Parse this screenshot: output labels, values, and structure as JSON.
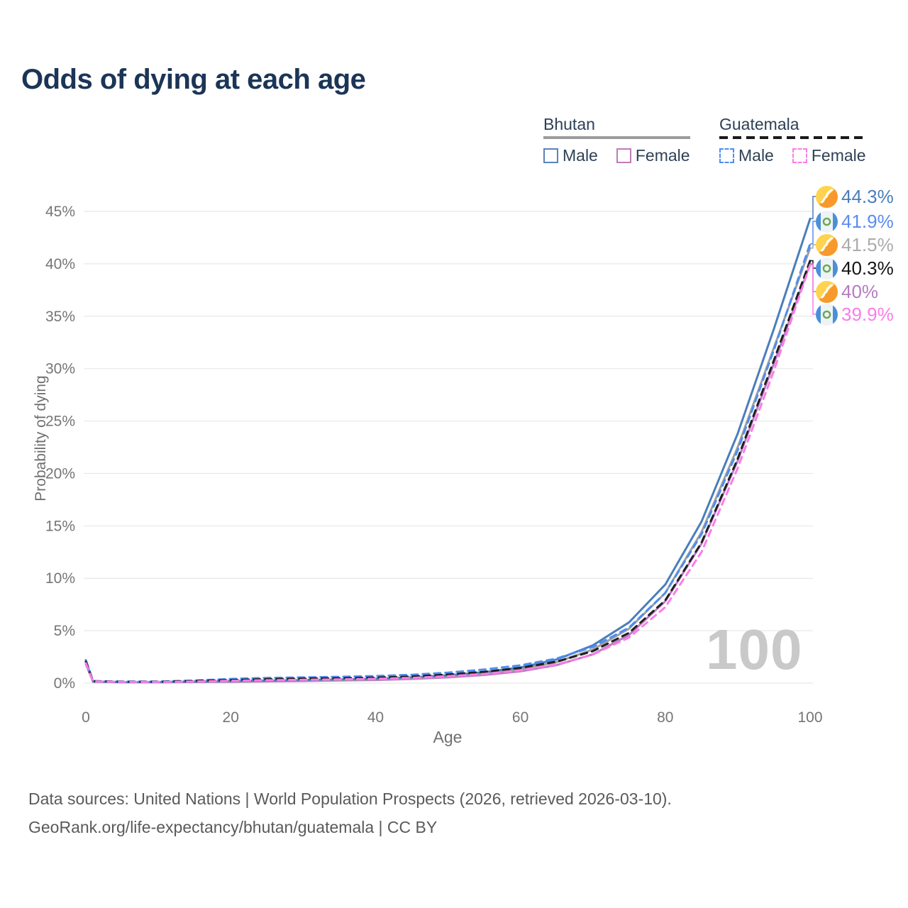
{
  "title": "Odds of dying at each age",
  "legend": {
    "groups": [
      {
        "country": "Bhutan",
        "line_style": "solid",
        "underline_color": "#9c9c9c",
        "items": [
          {
            "label": "Male",
            "color": "#5b82bb"
          },
          {
            "label": "Female",
            "color": "#bf7cba"
          }
        ]
      },
      {
        "country": "Guatemala",
        "line_style": "dashed",
        "underline_color": "#1a1a1a",
        "items": [
          {
            "label": "Male",
            "color": "#4f8df2"
          },
          {
            "label": "Female",
            "color": "#fb7ce8"
          }
        ]
      }
    ]
  },
  "watermark_age": "100",
  "end_labels": [
    {
      "flag": "bhutan",
      "value": "44.3%",
      "color": "#4a7ebb"
    },
    {
      "flag": "guatemala",
      "value": "41.9%",
      "color": "#5b8cf0"
    },
    {
      "flag": "bhutan",
      "value": "41.5%",
      "color": "#ababab"
    },
    {
      "flag": "guatemala",
      "value": "40.3%",
      "color": "#141414"
    },
    {
      "flag": "bhutan",
      "value": "40%",
      "color": "#b57cc0"
    },
    {
      "flag": "guatemala",
      "value": "39.9%",
      "color": "#fb7ce8"
    }
  ],
  "footer": {
    "line1": "Data sources: United Nations | World Population Prospects (2026, retrieved 2026-03-10).",
    "line2": "GeoRank.org/life-expectancy/bhutan/guatemala | CC BY"
  },
  "chart_data": {
    "type": "line",
    "title": "Odds of dying at each age",
    "xlabel": "Age",
    "ylabel": "Probability of dying",
    "xlim": [
      0,
      100
    ],
    "ylim": [
      0,
      45
    ],
    "grid": "horizontal",
    "legend_position": "top-right",
    "xticks": [
      0,
      20,
      40,
      60,
      80,
      100
    ],
    "yticks": [
      "0%",
      "5%",
      "10%",
      "15%",
      "20%",
      "25%",
      "30%",
      "35%",
      "40%",
      "45%"
    ],
    "x": [
      0,
      1,
      5,
      10,
      15,
      20,
      25,
      30,
      35,
      40,
      45,
      50,
      55,
      60,
      65,
      70,
      75,
      80,
      85,
      90,
      95,
      100
    ],
    "series": [
      {
        "id": "bhutan-female",
        "name": "Bhutan Female",
        "color": "#bc7ac4",
        "dash": "solid",
        "end_label": "40%",
        "values": [
          1.8,
          0.13,
          0.08,
          0.08,
          0.1,
          0.13,
          0.16,
          0.2,
          0.25,
          0.3,
          0.4,
          0.55,
          0.78,
          1.12,
          1.72,
          2.75,
          4.6,
          7.8,
          13.3,
          21.2,
          30.5,
          40.0
        ]
      },
      {
        "id": "bhutan-all",
        "name": "Bhutan Both sexes",
        "color": "#9e9e9e",
        "dash": "solid",
        "end_label": "41.5%",
        "values": [
          1.95,
          0.14,
          0.09,
          0.09,
          0.13,
          0.17,
          0.21,
          0.26,
          0.3,
          0.36,
          0.47,
          0.65,
          0.92,
          1.32,
          2.0,
          3.2,
          5.2,
          8.6,
          14.4,
          22.5,
          32.0,
          41.5
        ]
      },
      {
        "id": "bhutan-male",
        "name": "Bhutan Male",
        "color": "#4a7ebb",
        "dash": "solid",
        "end_label": "44.3%",
        "values": [
          2.1,
          0.15,
          0.1,
          0.1,
          0.15,
          0.2,
          0.25,
          0.3,
          0.35,
          0.42,
          0.55,
          0.75,
          1.05,
          1.5,
          2.25,
          3.6,
          5.8,
          9.4,
          15.4,
          23.8,
          33.8,
          44.3
        ]
      },
      {
        "id": "guatemala-male",
        "name": "Guatemala Male",
        "color": "#4f8df2",
        "dash": "dashed",
        "end_label": "41.9%",
        "values": [
          2.2,
          0.2,
          0.15,
          0.15,
          0.25,
          0.4,
          0.5,
          0.55,
          0.6,
          0.68,
          0.8,
          1.0,
          1.3,
          1.7,
          2.35,
          3.45,
          5.3,
          8.6,
          14.2,
          22.2,
          31.8,
          41.9
        ]
      },
      {
        "id": "guatemala-all",
        "name": "Guatemala Both sexes",
        "color": "#1f1f1f",
        "dash": "dashed",
        "end_label": "40.3%",
        "values": [
          2.05,
          0.18,
          0.13,
          0.13,
          0.2,
          0.3,
          0.38,
          0.43,
          0.47,
          0.53,
          0.63,
          0.82,
          1.08,
          1.45,
          2.05,
          3.05,
          4.8,
          7.9,
          13.4,
          21.4,
          30.8,
          40.3
        ]
      },
      {
        "id": "guatemala-female",
        "name": "Guatemala Female",
        "color": "#fb7ce8",
        "dash": "dashed",
        "end_label": "39.9%",
        "values": [
          1.9,
          0.16,
          0.11,
          0.11,
          0.15,
          0.22,
          0.28,
          0.32,
          0.36,
          0.41,
          0.5,
          0.66,
          0.87,
          1.22,
          1.78,
          2.72,
          4.35,
          7.25,
          12.5,
          20.5,
          29.8,
          39.9
        ]
      }
    ]
  }
}
